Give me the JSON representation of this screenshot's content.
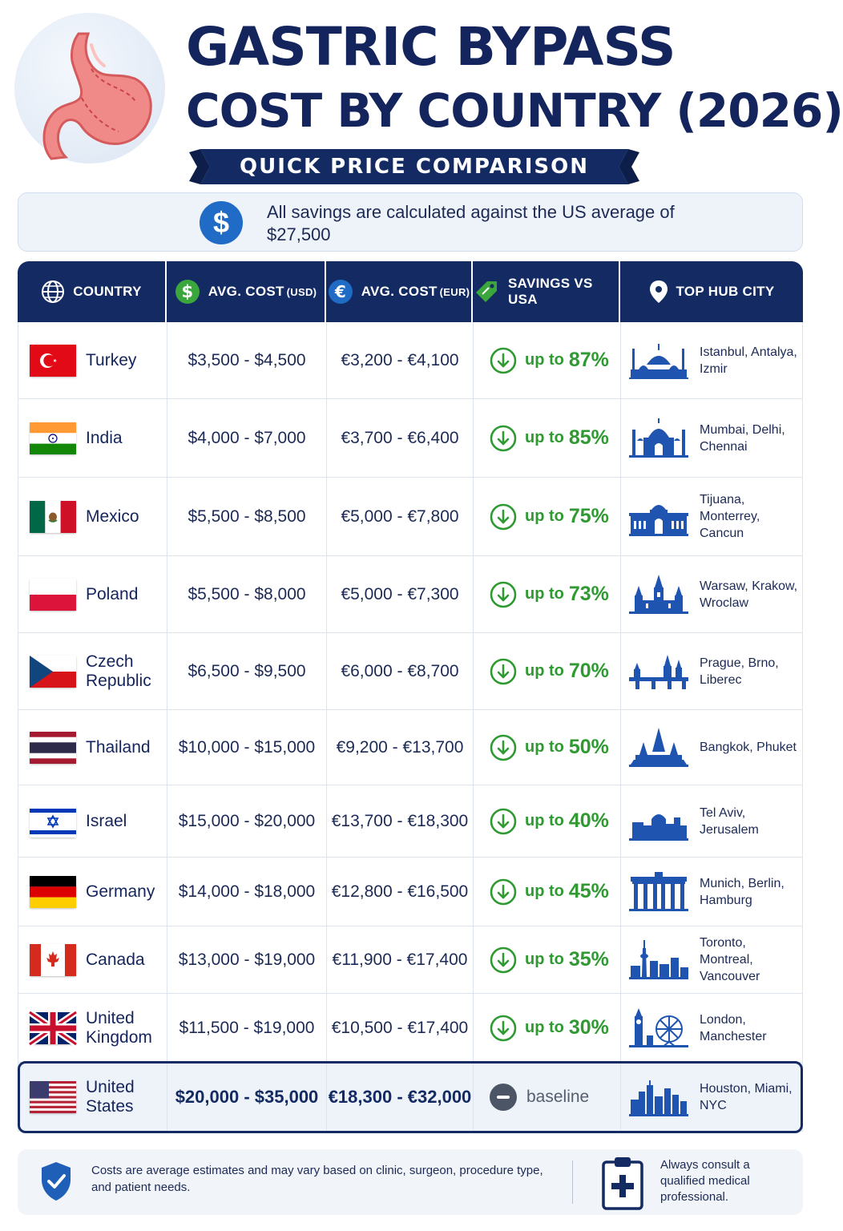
{
  "header": {
    "title_line1": "GASTRIC BYPASS",
    "title_line2": "COST BY COUNTRY (2026)",
    "ribbon": "QUICK PRICE COMPARISON"
  },
  "notice": {
    "text": "All savings are calculated against the US average of $27,500",
    "icon": "dollar-icon"
  },
  "table": {
    "headers": {
      "country": "COUNTRY",
      "usd": "AVG. COST",
      "usd_unit": "(USD)",
      "eur": "AVG. COST",
      "eur_unit": "(EUR)",
      "savings": "SAVINGS VS USA",
      "city": "TOP HUB CITY"
    },
    "save_prefix": "up to",
    "rows": [
      {
        "country": "Turkey",
        "usd": "$3,500 - $4,500",
        "eur": "€3,200 - €4,100",
        "savings": "87%",
        "city": "Istanbul, Antalya, Izmir",
        "flag": "turkey-flag-icon",
        "skyline": "mosque-skyline-icon"
      },
      {
        "country": "India",
        "usd": "$4,000 - $7,000",
        "eur": "€3,700 - €6,400",
        "savings": "85%",
        "city": "Mumbai, Delhi, Chennai",
        "flag": "india-flag-icon",
        "skyline": "taj-mahal-icon"
      },
      {
        "country": "Mexico",
        "usd": "$5,500 - $8,500",
        "eur": "€5,000 - €7,800",
        "savings": "75%",
        "city": "Tijuana, Monterrey, Cancun",
        "flag": "mexico-flag-icon",
        "skyline": "palace-icon"
      },
      {
        "country": "Poland",
        "usd": "$5,500 - $8,000",
        "eur": "€5,000 - €7,300",
        "savings": "73%",
        "city": "Warsaw, Krakow, Wroclaw",
        "flag": "poland-flag-icon",
        "skyline": "church-skyline-icon"
      },
      {
        "country": "Czech Republic",
        "usd": "$6,500 - $9,500",
        "eur": "€6,000 - €8,700",
        "savings": "70%",
        "city": "Prague, Brno, Liberec",
        "flag": "czech-flag-icon",
        "skyline": "bridge-skyline-icon"
      },
      {
        "country": "Thailand",
        "usd": "$10,000 - $15,000",
        "eur": "€9,200 - €13,700",
        "savings": "50%",
        "city": "Bangkok, Phuket",
        "flag": "thailand-flag-icon",
        "skyline": "temple-icon"
      },
      {
        "country": "Israel",
        "usd": "$15,000 - $20,000",
        "eur": "€13,700 - €18,300",
        "savings": "40%",
        "city": "Tel Aviv, Jerusalem",
        "flag": "israel-flag-icon",
        "skyline": "city-dome-icon"
      },
      {
        "country": "Germany",
        "usd": "$14,000 - $18,000",
        "eur": "€12,800 - €16,500",
        "savings": "45%",
        "city": "Munich, Berlin, Hamburg",
        "flag": "germany-flag-icon",
        "skyline": "brandenburg-gate-icon"
      },
      {
        "country": "Canada",
        "usd": "$13,000 - $19,000",
        "eur": "€11,900 - €17,400",
        "savings": "35%",
        "city": "Toronto, Montreal, Vancouver",
        "flag": "canada-flag-icon",
        "skyline": "cn-tower-skyline-icon"
      },
      {
        "country": "United Kingdom",
        "usd": "$11,500 - $19,000",
        "eur": "€10,500 - €17,400",
        "savings": "30%",
        "city": "London, Manchester",
        "flag": "uk-flag-icon",
        "skyline": "big-ben-eye-icon"
      }
    ],
    "baseline_row": {
      "country": "United States",
      "usd": "$20,000 - $35,000",
      "eur": "€18,300 - €32,000",
      "savings": "baseline",
      "city": "Houston, Miami, NYC",
      "flag": "usa-flag-icon",
      "skyline": "city-skyline-icon"
    }
  },
  "footer": {
    "disclaimer": "Costs are average estimates and may vary based on clinic, surgeon, procedure type, and patient needs.",
    "consult": "Always consult a qualified medical professional."
  },
  "colors": {
    "navy": "#132a63",
    "accent_blue": "#1f6bc5",
    "savings_green": "#2f9a32",
    "notice_bg": "#eef3fa"
  }
}
